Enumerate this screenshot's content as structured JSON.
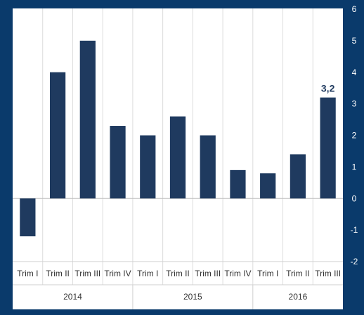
{
  "chart_data": {
    "type": "bar",
    "title": "",
    "xlabel": "",
    "ylabel": "",
    "ylim": [
      -2,
      6
    ],
    "yticks": [
      "-2",
      "-1",
      "0",
      "1",
      "2",
      "3",
      "4",
      "5",
      "6"
    ],
    "y_axis_side": "right",
    "grid": "vertical separators between categories",
    "categories": [
      "Trim I",
      "Trim II",
      "Trim III",
      "Trim IV",
      "Trim I",
      "Trim II",
      "Trim III",
      "Trim IV",
      "Trim I",
      "Trim II",
      "Trim III"
    ],
    "groups": [
      {
        "label": "2014",
        "count": 4
      },
      {
        "label": "2015",
        "count": 4
      },
      {
        "label": "2016",
        "count": 3
      }
    ],
    "values": [
      -1.2,
      4.0,
      5.0,
      2.3,
      2.0,
      2.6,
      2.0,
      0.9,
      0.8,
      1.4,
      3.2
    ],
    "annotation": {
      "index": 10,
      "text": "3,2"
    },
    "colors": {
      "bar": "#1f3a5f",
      "frame": "#0a3a6b",
      "plot_bg": "#ffffff",
      "annotation": "#1f3a5f"
    }
  }
}
